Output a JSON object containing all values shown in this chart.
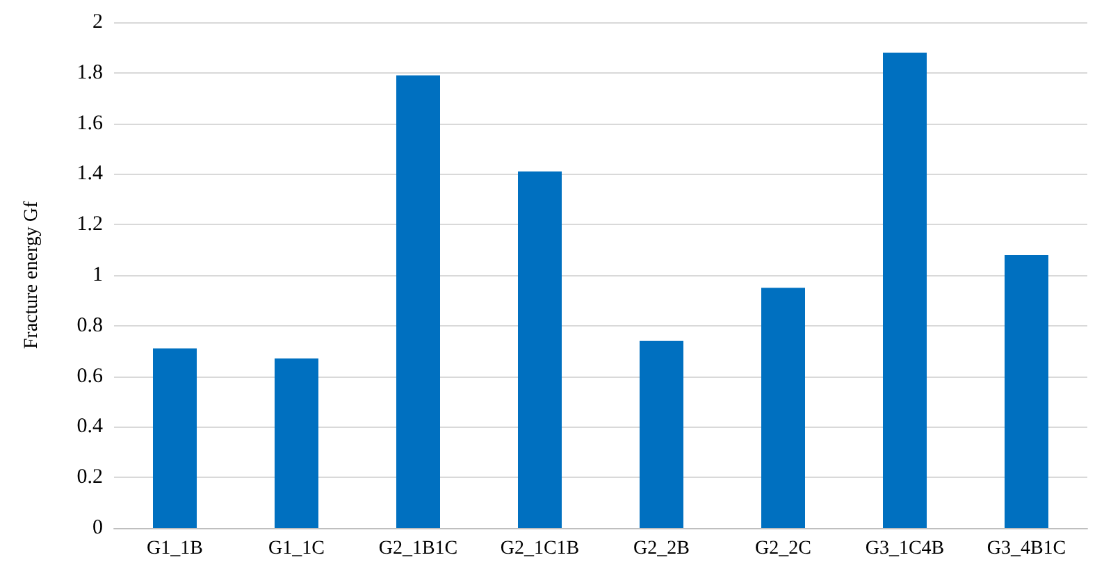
{
  "chart_data": {
    "type": "bar",
    "ylabel": "Fracture energy Gf",
    "categories": [
      "G1_1B",
      "G1_1C",
      "G2_1B1C",
      "G2_1C1B",
      "G2_2B",
      "G2_2C",
      "G3_1C4B",
      "G3_4B1C"
    ],
    "values": [
      0.71,
      0.67,
      1.79,
      1.41,
      0.74,
      0.95,
      1.88,
      1.08
    ],
    "color": "#0070c0",
    "ylim": [
      0,
      2
    ],
    "yticks": [
      0,
      0.2,
      0.4,
      0.6,
      0.8,
      1,
      1.2,
      1.4,
      1.6,
      1.8,
      2
    ],
    "grid": "y"
  }
}
